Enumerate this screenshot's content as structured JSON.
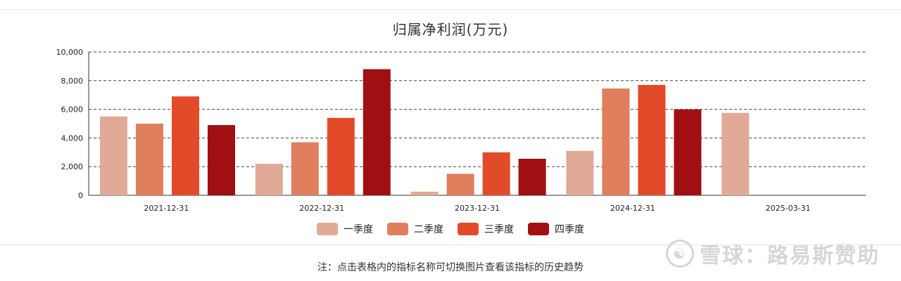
{
  "chart_data": {
    "type": "bar",
    "title": "归属净利润(万元)",
    "categories": [
      "2021-12-31",
      "2022-12-31",
      "2023-12-31",
      "2024-12-31",
      "2025-03-31"
    ],
    "series": [
      {
        "name": "一季度",
        "color": "#e1aa97",
        "values": [
          5500,
          2200,
          250,
          3100,
          5750
        ]
      },
      {
        "name": "二季度",
        "color": "#e07f5e",
        "values": [
          5000,
          3700,
          1500,
          7450,
          null
        ]
      },
      {
        "name": "三季度",
        "color": "#e24b2a",
        "values": [
          6900,
          5400,
          3000,
          7700,
          null
        ]
      },
      {
        "name": "四季度",
        "color": "#a01013",
        "values": [
          4900,
          8800,
          2550,
          6000,
          null
        ]
      }
    ],
    "yticks": [
      "0",
      "2,000",
      "4,000",
      "6,000",
      "8,000",
      "10,000"
    ],
    "ylim": [
      0,
      10000
    ],
    "grid": true,
    "legend_position": "bottom"
  },
  "note": "注：点击表格内的指标名称可切换图片查看该指标的历史趋势",
  "watermark": {
    "logo": "☯",
    "text": "雪球：路易斯赞助"
  }
}
